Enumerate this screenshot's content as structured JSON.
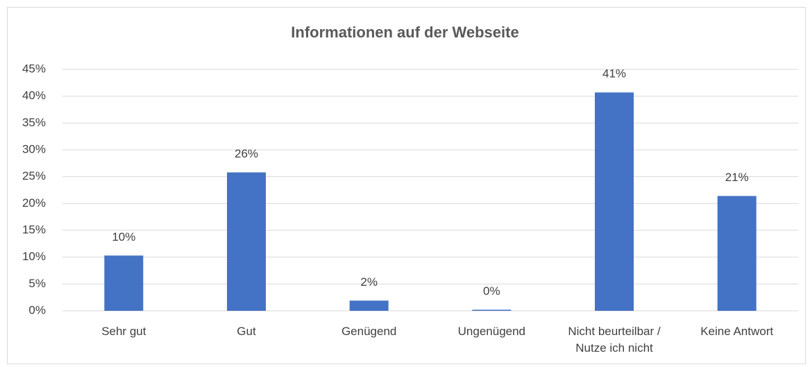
{
  "chart_data": {
    "type": "bar",
    "title": "Informationen auf der Webseite",
    "categories": [
      "Sehr gut",
      "Gut",
      "Genügend",
      "Ungenügend",
      "Nicht beurteilbar / Nutze ich nicht",
      "Keine Antwort"
    ],
    "values": [
      10.3,
      25.8,
      1.9,
      0.2,
      40.7,
      21.4
    ],
    "value_labels": [
      "10%",
      "26%",
      "2%",
      "0%",
      "41%",
      "21%"
    ],
    "color": "#4472c4",
    "ylim": [
      0,
      45
    ],
    "yticks": [
      {
        "value": 0,
        "label": "0%"
      },
      {
        "value": 5,
        "label": "5%"
      },
      {
        "value": 10,
        "label": "10%"
      },
      {
        "value": 15,
        "label": "15%"
      },
      {
        "value": 20,
        "label": "20%"
      },
      {
        "value": 25,
        "label": "25%"
      },
      {
        "value": 30,
        "label": "30%"
      },
      {
        "value": 35,
        "label": "35%"
      },
      {
        "value": 40,
        "label": "40%"
      },
      {
        "value": 45,
        "label": "45%"
      }
    ],
    "grid": true
  }
}
